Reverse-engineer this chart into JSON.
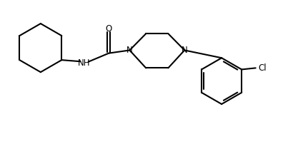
{
  "background_color": "#ffffff",
  "line_color": "#000000",
  "line_width": 1.5,
  "font_size": 8.5,
  "figsize": [
    3.96,
    2.09
  ],
  "dpi": 100,
  "xlim": [
    0,
    9.5
  ],
  "ylim": [
    0,
    5.0
  ]
}
